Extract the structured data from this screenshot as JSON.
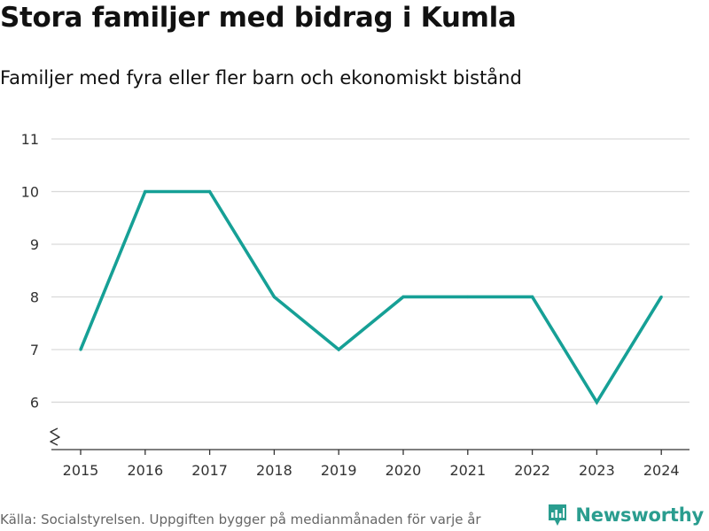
{
  "title": "Stora familjer med bidrag i Kumla",
  "subtitle": "Familjer med fyra eller fler barn och ekonomiskt bistånd",
  "source": "Källa: Socialstyrelsen. Uppgiften bygger på medianmånaden för varje år",
  "brand": {
    "name": "Newsworthy"
  },
  "colors": {
    "line": "#16a096",
    "grid": "#d9d9d9",
    "axis": "#333333",
    "brand": "#2a9d8f"
  },
  "chart_data": {
    "type": "line",
    "title": "Stora familjer med bidrag i Kumla",
    "subtitle": "Familjer med fyra eller fler barn och ekonomiskt bistånd",
    "xlabel": "",
    "ylabel": "",
    "x": [
      "2015",
      "2016",
      "2017",
      "2018",
      "2019",
      "2020",
      "2021",
      "2022",
      "2023",
      "2024"
    ],
    "series": [
      {
        "name": "Familjer",
        "values": [
          7,
          10,
          10,
          8,
          7,
          8,
          8,
          8,
          6,
          8
        ]
      }
    ],
    "yticks": [
      6,
      7,
      8,
      9,
      10,
      11
    ],
    "ylim": [
      5.1,
      11
    ],
    "grid": true,
    "y_axis_break": true
  }
}
